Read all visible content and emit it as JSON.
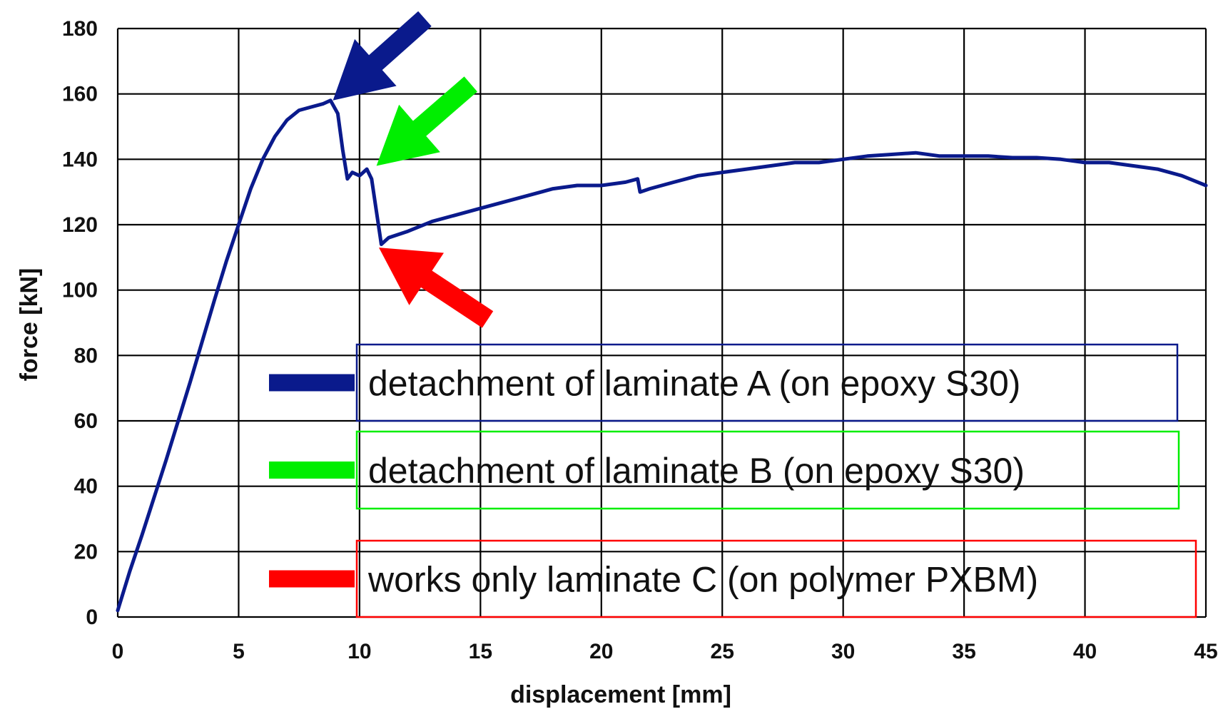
{
  "chart_data": {
    "type": "line",
    "title": "",
    "xlabel": "displacement [mm]",
    "ylabel": "force [kN]",
    "xlim": [
      0,
      45
    ],
    "ylim": [
      0,
      180
    ],
    "xticks": [
      0,
      5,
      10,
      15,
      20,
      25,
      30,
      35,
      40,
      45
    ],
    "yticks": [
      0,
      20,
      40,
      60,
      80,
      100,
      120,
      140,
      160,
      180
    ],
    "grid": true,
    "series": [
      {
        "color": "#0a1a8c",
        "x": [
          0,
          0.5,
          1,
          2,
          3,
          4,
          4.5,
          5,
          5.5,
          6,
          6.5,
          7,
          7.5,
          8,
          8.5,
          8.8,
          9.1,
          9.3,
          9.5,
          9.7,
          10,
          10.3,
          10.5,
          10.7,
          10.9,
          11.2,
          12,
          13,
          14,
          15,
          16,
          17,
          18,
          19,
          20,
          21,
          21.5,
          21.6,
          22,
          23,
          24,
          25,
          26,
          27,
          28,
          29,
          30,
          31,
          32,
          33,
          34,
          35,
          36,
          37,
          38,
          39,
          40,
          41,
          42,
          43,
          44,
          45
        ],
        "y": [
          2,
          14,
          25,
          48,
          72,
          97,
          109,
          120,
          131,
          140,
          147,
          152,
          155,
          156,
          157,
          158,
          154,
          143,
          134,
          136,
          135,
          137,
          134,
          124,
          114,
          116,
          118,
          121,
          123,
          125,
          127,
          129,
          131,
          132,
          132,
          133,
          134,
          130,
          131,
          133,
          135,
          136,
          137,
          138,
          139,
          139,
          140,
          141,
          141.5,
          142,
          141,
          141,
          141,
          140.5,
          140.5,
          140,
          139,
          139,
          138,
          137,
          135,
          132
        ]
      }
    ],
    "legend": [
      {
        "label": "detachment of laminate A (on epoxy S30)",
        "color": "#0a1a8c"
      },
      {
        "label": "detachment of laminate B (on epoxy S30)",
        "color": "#00ee00"
      },
      {
        "label": "works only laminate C (on polymer PXBM)",
        "color": "#ff0000"
      }
    ],
    "annotations": [
      {
        "type": "arrow",
        "color": "#0a1a8c",
        "target": [
          8.9,
          158
        ],
        "from": [
          12.7,
          183
        ]
      },
      {
        "type": "arrow",
        "color": "#00ee00",
        "target": [
          10.7,
          138
        ],
        "from": [
          14.6,
          163
        ]
      },
      {
        "type": "arrow",
        "color": "#ff0000",
        "target": [
          10.8,
          113
        ],
        "from": [
          15.3,
          91
        ]
      }
    ]
  }
}
